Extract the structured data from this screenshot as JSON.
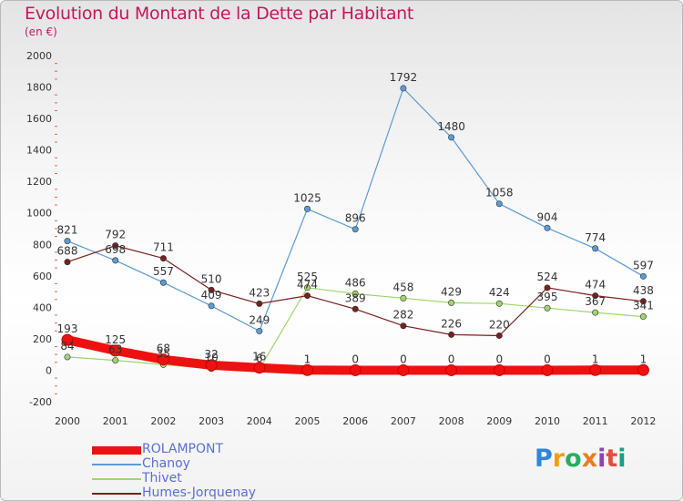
{
  "header": {
    "title": "Evolution du Montant de la Dette par Habitant",
    "subtitle": "(en €)"
  },
  "logo": {
    "text": "Proxiti",
    "colors": [
      "#2e86de",
      "#f39c12",
      "#27ae60",
      "#e67e22",
      "#8e44ad",
      "#e74c3c",
      "#16a085"
    ]
  },
  "chart_data": {
    "type": "line",
    "x": [
      "2000",
      "2001",
      "2002",
      "2003",
      "2004",
      "2005",
      "2006",
      "2007",
      "2008",
      "2009",
      "2010",
      "2011",
      "2012"
    ],
    "ylim": [
      -200,
      2000
    ],
    "yticks": [
      -200,
      0,
      200,
      400,
      600,
      800,
      1000,
      1200,
      1400,
      1600,
      1800,
      2000
    ],
    "grid": false,
    "legend_position": "bottom-left",
    "series": [
      {
        "name": "Chanoy",
        "color": "#5b9bd5",
        "values": [
          821,
          698,
          557,
          409,
          249,
          1025,
          896,
          1792,
          1480,
          1058,
          904,
          774,
          597
        ]
      },
      {
        "name": "Thivet",
        "color": "#9ed66b",
        "values": [
          84,
          63,
          35,
          10,
          6,
          525,
          486,
          458,
          429,
          424,
          395,
          367,
          341
        ]
      },
      {
        "name": "Humes-Jorquenay",
        "color": "#7a1f1f",
        "values": [
          688,
          792,
          711,
          510,
          423,
          474,
          389,
          282,
          226,
          220,
          524,
          474,
          438
        ]
      },
      {
        "name": "ROLAMPONT",
        "color": "#ee1111",
        "values": [
          193,
          125,
          68,
          32,
          16,
          1,
          0,
          0,
          0,
          0,
          0,
          1,
          1
        ]
      }
    ],
    "legend_order": [
      "ROLAMPONT",
      "Chanoy",
      "Thivet",
      "Humes-Jorquenay"
    ]
  }
}
